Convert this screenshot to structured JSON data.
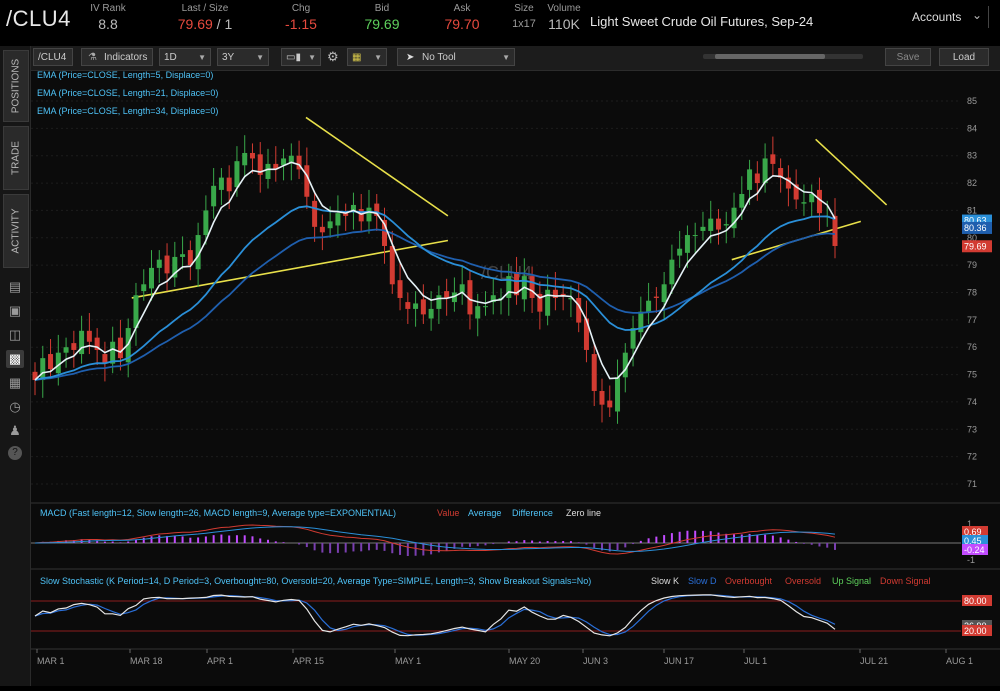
{
  "quote": {
    "symbol": "/CLU4",
    "iv_rank": {
      "label": "IV Rank",
      "value": "8.8"
    },
    "last_size": {
      "label": "Last / Size",
      "value": "79.69",
      "size": "/ 1"
    },
    "chg": {
      "label": "Chg",
      "value": "-1.15"
    },
    "bid": {
      "label": "Bid",
      "value": "79.69"
    },
    "ask": {
      "label": "Ask",
      "value": "79.70"
    },
    "size": {
      "label": "Size",
      "value": "1x17"
    },
    "volume": {
      "label": "Volume",
      "value": "110K"
    },
    "description": "Light Sweet Crude Oil Futures, Sep-24",
    "accounts_label": "Accounts"
  },
  "rail": {
    "tabs": [
      "POSITIONS",
      "TRADE",
      "ACTIVITY"
    ]
  },
  "toolbar": {
    "symbol": "/CLU4",
    "indicators": "Indicators",
    "interval": "1D",
    "range": "3Y",
    "drawing_tool": "No Tool",
    "save": "Save",
    "load": "Load"
  },
  "price_chart": {
    "watermark": "/CLU4",
    "legend": [
      "EMA (Price=CLOSE, Length=5, Displace=0)",
      "EMA (Price=CLOSE, Length=21, Displace=0)",
      "EMA (Price=CLOSE, Length=34, Displace=0)"
    ],
    "y_ticks": [
      "85",
      "84",
      "83",
      "82",
      "81",
      "80",
      "79",
      "78",
      "77",
      "76",
      "75",
      "74",
      "73",
      "72",
      "71"
    ],
    "price_tags": [
      "80.63",
      "80.36",
      "79.69"
    ]
  },
  "macd": {
    "legend": "MACD (Fast length=12, Slow length=26, MACD length=9, Average type=EXPONENTIAL)",
    "series": [
      "Value",
      "Average",
      "Difference",
      "Zero line"
    ],
    "y_ticks": [
      "1",
      "-1"
    ],
    "tags": [
      "0.69",
      "0.45",
      "-0.24"
    ]
  },
  "stoch": {
    "legend": "Slow Stochastic (K Period=14, D Period=3, Overbought=80, Oversold=20, Average Type=SIMPLE, Length=3, Show Breakout Signals=No)",
    "series": [
      "Slow K",
      "Slow D",
      "Overbought",
      "Oversold",
      "Up Signal",
      "Down Signal"
    ],
    "tags": [
      "80.00",
      "26.90",
      "20.00"
    ]
  },
  "x_axis": [
    "MAR 1",
    "MAR 18",
    "APR 1",
    "APR 15",
    "MAY 1",
    "MAY 20",
    "JUN 3",
    "JUN 17",
    "JUL 1",
    "JUL 21",
    "AUG 1"
  ],
  "colors": {
    "up": "#39a84a",
    "down": "#d23b32",
    "ema5": "#e6f2f7",
    "ema21": "#2a8fd8",
    "ema34": "#1f5fae",
    "trend": "#e8e04a"
  },
  "chart_data": {
    "type": "line",
    "ohlc_close": [
      74.8,
      75.6,
      75.2,
      75.8,
      76.0,
      75.9,
      76.6,
      76.2,
      75.9,
      75.4,
      76.2,
      75.6,
      76.7,
      77.9,
      78.3,
      78.9,
      79.2,
      78.7,
      79.3,
      79.4,
      79.0,
      80.1,
      81.0,
      81.9,
      82.2,
      81.7,
      82.8,
      83.1,
      82.9,
      82.3,
      82.7,
      82.5,
      82.9,
      83.0,
      82.5,
      81.5,
      80.4,
      80.2,
      80.6,
      80.9,
      80.8,
      81.2,
      80.6,
      81.1,
      80.8,
      79.7,
      78.3,
      77.8,
      77.4,
      77.6,
      77.2,
      77.4,
      77.9,
      77.8,
      78.0,
      78.3,
      77.2,
      77.5,
      77.5,
      77.9,
      77.8,
      78.6,
      77.9,
      78.6,
      77.8,
      77.3,
      78.1,
      77.8,
      77.9,
      77.8,
      76.9,
      75.9,
      74.4,
      73.9,
      73.8,
      74.9,
      75.8,
      76.7,
      77.3,
      77.7,
      77.8,
      78.3,
      79.2,
      79.6,
      80.1,
      80.1,
      80.4,
      80.7,
      80.3,
      80.5,
      81.1,
      81.6,
      82.5,
      82.0,
      82.9,
      82.7,
      82.2,
      81.8,
      81.4,
      81.3,
      81.6,
      80.9,
      80.8,
      79.7
    ],
    "y_range": [
      71,
      85
    ],
    "x_labels": [
      "MAR 1",
      "MAR 18",
      "APR 1",
      "APR 15",
      "MAY 1",
      "MAY 20",
      "JUN 3",
      "JUN 17",
      "JUL 1",
      "JUL 21",
      "AUG 1"
    ]
  }
}
